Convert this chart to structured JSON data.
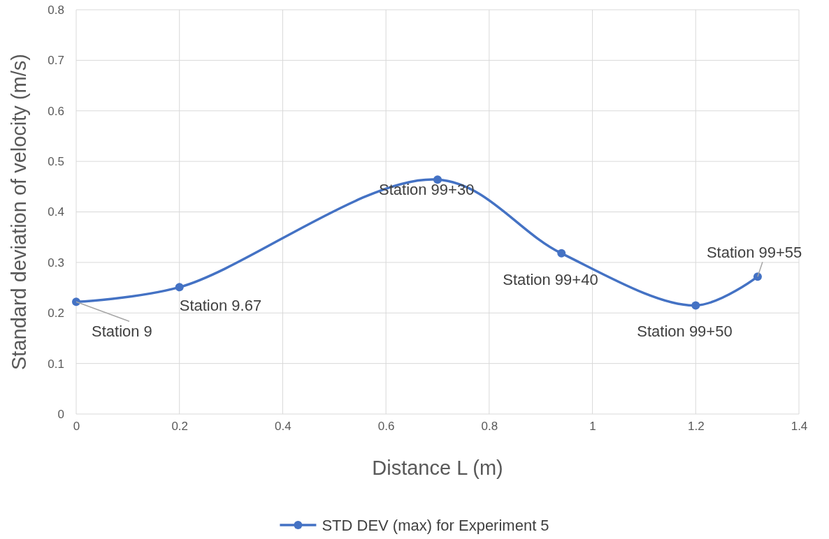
{
  "chart_data": {
    "type": "line",
    "xlabel": "Distance L (m)",
    "ylabel": "Standard deviation of velocity (m/s)",
    "x": [
      0,
      0.2,
      0.7,
      0.94,
      1.2,
      1.32
    ],
    "series": [
      {
        "name": "STD DEV (max) for Experiment 5",
        "color": "#4472c4",
        "values": [
          0.222,
          0.251,
          0.464,
          0.318,
          0.215,
          0.272
        ]
      }
    ],
    "xlim": [
      0,
      1.4
    ],
    "xticks": [
      0,
      0.2,
      0.4,
      0.6,
      0.8,
      1,
      1.2,
      1.4
    ],
    "ylim": [
      0,
      0.8
    ],
    "yticks": [
      0,
      0.1,
      0.2,
      0.3,
      0.4,
      0.5,
      0.6,
      0.7,
      0.8
    ],
    "annotations": [
      {
        "text": "Station 9",
        "x": 0,
        "y": 0.222
      },
      {
        "text": "Station 9.67",
        "x": 0.2,
        "y": 0.251
      },
      {
        "text": "Station 99+30",
        "x": 0.7,
        "y": 0.464
      },
      {
        "text": "Station 99+40",
        "x": 0.94,
        "y": 0.318
      },
      {
        "text": "Station 99+50",
        "x": 1.2,
        "y": 0.215
      },
      {
        "text": "Station 99+55",
        "x": 1.32,
        "y": 0.272
      }
    ],
    "grid": true,
    "legend": "bottom",
    "marker": "circle",
    "line_style": "solid"
  }
}
